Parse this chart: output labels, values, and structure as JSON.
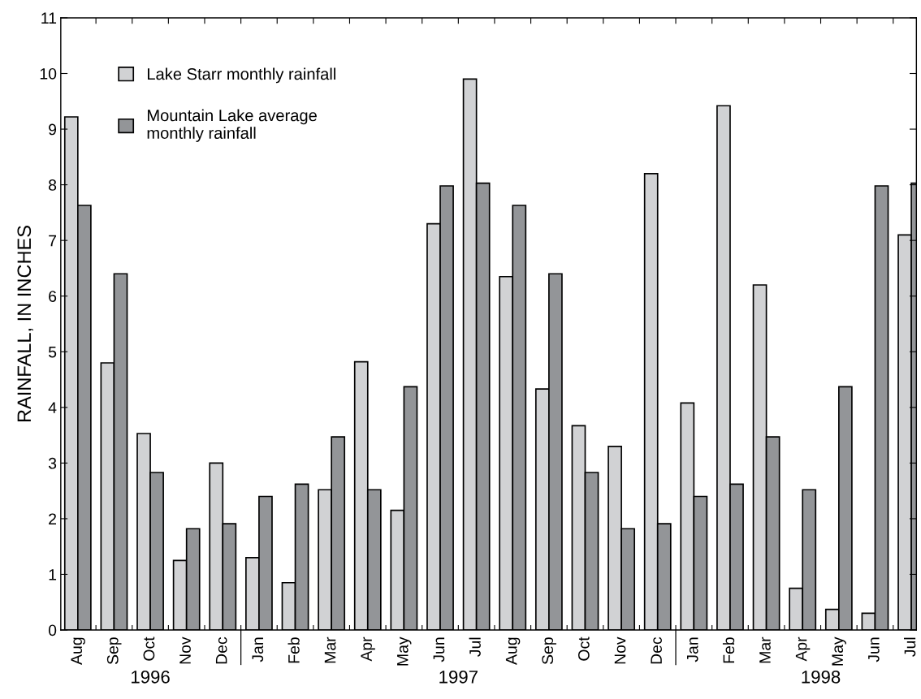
{
  "chart_data": {
    "type": "bar",
    "ylabel": "RAINFALL, IN INCHES",
    "categories": [
      "Aug",
      "Sep",
      "Oct",
      "Nov",
      "Dec",
      "Jan",
      "Feb",
      "Mar",
      "Apr",
      "May",
      "Jun",
      "Jul",
      "Aug",
      "Sep",
      "Oct",
      "Nov",
      "Dec",
      "Jan",
      "Feb",
      "Mar",
      "Apr",
      "May",
      "Jun",
      "Jul"
    ],
    "series": [
      {
        "name": "Lake Starr monthly rainfall",
        "color": "#d1d2d4",
        "values": [
          9.22,
          4.8,
          3.53,
          1.25,
          3.0,
          1.3,
          0.85,
          2.52,
          4.82,
          2.15,
          7.3,
          9.9,
          6.35,
          4.33,
          3.67,
          3.3,
          8.2,
          4.08,
          9.42,
          6.2,
          0.75,
          0.37,
          0.3,
          7.1
        ]
      },
      {
        "name": "Mountain Lake average\nmonthly rainfall",
        "color": "#939598",
        "values": [
          7.63,
          6.4,
          2.83,
          1.82,
          1.91,
          2.4,
          2.62,
          3.47,
          2.52,
          4.37,
          7.98,
          8.03,
          7.63,
          6.4,
          2.83,
          1.82,
          1.91,
          2.4,
          2.62,
          3.47,
          2.52,
          4.37,
          7.98,
          8.03
        ]
      }
    ],
    "ylim": [
      0,
      11
    ],
    "yticks": [
      0,
      1,
      2,
      3,
      4,
      5,
      6,
      7,
      8,
      9,
      10,
      11
    ],
    "grid": false,
    "legend": "top left",
    "annotations": [
      "1996",
      "1997",
      "1998"
    ]
  }
}
